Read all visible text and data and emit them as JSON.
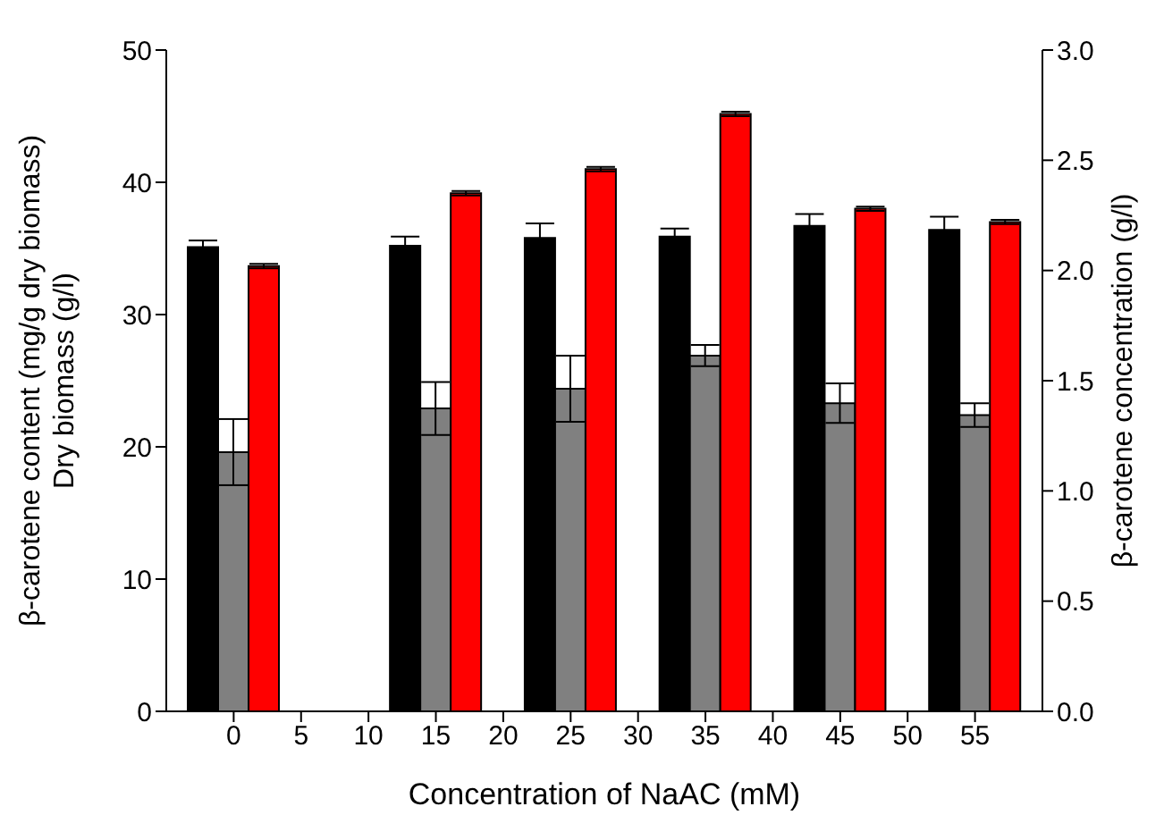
{
  "chart_data": {
    "type": "bar",
    "xlabel": "Concentration of NaAC (mM)",
    "ylabel": "β-carotene content (mg/g dry biomass)\nDry biomass (g/l)",
    "y2label": "β-carotene concentration (g/l)",
    "x": [
      0,
      15,
      25,
      35,
      45,
      55
    ],
    "xlim": [
      -5,
      60
    ],
    "xticks": [
      0,
      5,
      10,
      15,
      20,
      25,
      30,
      35,
      40,
      45,
      50,
      55
    ],
    "ylim": [
      0,
      50
    ],
    "yticks": [
      0,
      10,
      20,
      30,
      40,
      50
    ],
    "y2lim": [
      0,
      3
    ],
    "y2ticks": [
      {
        "value": 0,
        "label": "0.0"
      },
      {
        "value": 0.5,
        "label": "0.5"
      },
      {
        "value": 1,
        "label": "1.0"
      },
      {
        "value": 1.5,
        "label": "1.5"
      },
      {
        "value": 2,
        "label": "2.0"
      },
      {
        "value": 2.5,
        "label": "2.5"
      },
      {
        "value": 3,
        "label": "3.0"
      }
    ],
    "grid": false,
    "legend": false,
    "series": [
      {
        "color": "#000000",
        "values": [
          35.1,
          35.2,
          35.8,
          35.9,
          36.7,
          36.4
        ],
        "errors": [
          0.5,
          0.7,
          1.1,
          0.6,
          0.9,
          1.0
        ]
      },
      {
        "color": "#808080",
        "values": [
          19.6,
          22.9,
          24.4,
          26.9,
          23.3,
          22.4
        ],
        "errors": [
          2.5,
          2.0,
          2.5,
          0.8,
          1.5,
          0.9
        ]
      },
      {
        "color": "#ff0000",
        "axis": "y2",
        "values": [
          2.02,
          2.35,
          2.46,
          2.71,
          2.28,
          2.22
        ],
        "errors": [
          0.01,
          0.01,
          0.01,
          0.01,
          0.01,
          0.01
        ]
      }
    ]
  }
}
